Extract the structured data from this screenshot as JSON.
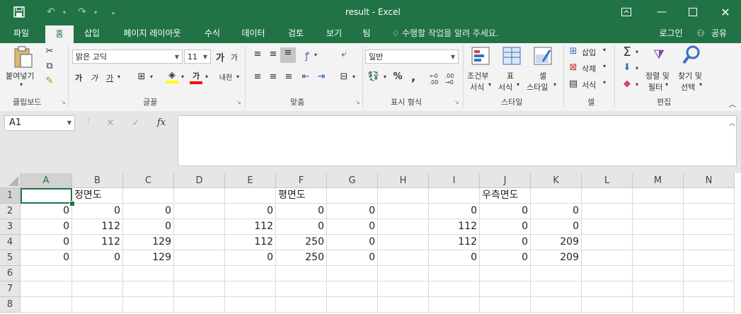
{
  "titlebar": {
    "title": "result - Excel",
    "save_icon": "save-icon",
    "undo_icon": "undo-icon",
    "redo_icon": "redo-icon",
    "qat_icon": "customize-qat-icon"
  },
  "tabs": [
    "파일",
    "홈",
    "삽입",
    "페이지 레이아웃",
    "수식",
    "데이터",
    "검토",
    "보기",
    "팀"
  ],
  "tell_me": "수행할 작업을 알려 주세요.",
  "login": "로그인",
  "share": "공유",
  "ribbon": {
    "clipboard": {
      "paste": "붙여넣기",
      "label": "클립보드"
    },
    "font": {
      "name": "맑은 고딕",
      "size": "11",
      "label": "글꼴",
      "bold": "가",
      "italic": "가",
      "underline": "가",
      "grow": "가",
      "shrink": "가",
      "color_a": "가",
      "phonetic": "내천"
    },
    "align": {
      "label": "맞춤"
    },
    "number": {
      "format": "일반",
      "label": "표시 형식",
      "percent": "%",
      "comma": ","
    },
    "styles": {
      "cond": "조건부",
      "cond2": "서식",
      "table": "표",
      "table2": "서식",
      "cell": "셀",
      "cell2": "스타일",
      "label": "스타일"
    },
    "cells": {
      "insert": "삽입",
      "delete": "삭제",
      "format": "서식",
      "label": "셀"
    },
    "editing": {
      "sort": "정렬 및",
      "sort2": "필터",
      "find": "찾기 및",
      "find2": "선택",
      "label": "편집"
    }
  },
  "formula_bar": {
    "name_box": "A1",
    "cancel": "✕",
    "enter": "✓",
    "fx": "fx",
    "value": ""
  },
  "columns": [
    "A",
    "B",
    "C",
    "D",
    "E",
    "F",
    "G",
    "H",
    "I",
    "J",
    "K",
    "L",
    "M",
    "N"
  ],
  "rows": [
    "1",
    "2",
    "3",
    "4",
    "5",
    "6",
    "7",
    "8"
  ],
  "cells": {
    "B1": "정면도",
    "F1": "평면도",
    "J1": "우측면도",
    "A2": "0",
    "B2": "0",
    "C2": "0",
    "E2": "0",
    "F2": "0",
    "G2": "0",
    "I2": "0",
    "J2": "0",
    "K2": "0",
    "A3": "0",
    "B3": "112",
    "C3": "0",
    "E3": "112",
    "F3": "0",
    "G3": "0",
    "I3": "112",
    "J3": "0",
    "K3": "0",
    "A4": "0",
    "B4": "112",
    "C4": "129",
    "E4": "112",
    "F4": "250",
    "G4": "0",
    "I4": "112",
    "J4": "0",
    "K4": "209",
    "A5": "0",
    "B5": "0",
    "C5": "129",
    "E5": "0",
    "F5": "250",
    "G5": "0",
    "I5": "0",
    "J5": "0",
    "K5": "209"
  },
  "colors": {
    "brand": "#217346",
    "ribbon": "#f3f3f3",
    "gridline": "#dadada"
  }
}
